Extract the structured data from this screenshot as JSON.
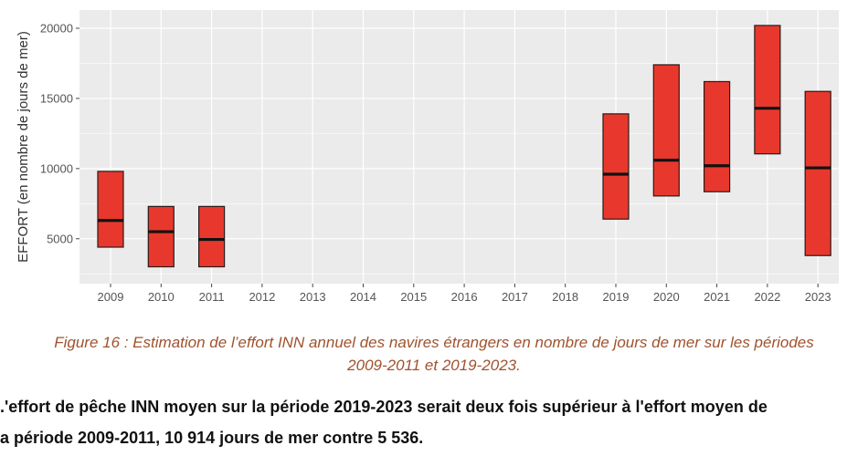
{
  "chart_data": {
    "type": "boxplot-range",
    "categories": [
      "2009",
      "2010",
      "2011",
      "2012",
      "2013",
      "2014",
      "2015",
      "2016",
      "2017",
      "2018",
      "2019",
      "2020",
      "2021",
      "2022",
      "2023"
    ],
    "series": [
      {
        "ranges": [
          {
            "x": "2009",
            "low": 4400,
            "high": 9800,
            "median": 6300
          },
          {
            "x": "2010",
            "low": 3000,
            "high": 7300,
            "median": 5500
          },
          {
            "x": "2011",
            "low": 3000,
            "high": 7300,
            "median": 4950
          },
          {
            "x": "2019",
            "low": 6400,
            "high": 13900,
            "median": 9600
          },
          {
            "x": "2020",
            "low": 8050,
            "high": 17400,
            "median": 10600
          },
          {
            "x": "2021",
            "low": 8350,
            "high": 16200,
            "median": 10200
          },
          {
            "x": "2022",
            "low": 11050,
            "high": 20200,
            "median": 14300
          },
          {
            "x": "2023",
            "low": 3800,
            "high": 15500,
            "median": 10050
          }
        ]
      }
    ],
    "yticks": [
      "5000",
      "10000",
      "15000",
      "20000"
    ],
    "ylim": [
      1800,
      21300
    ],
    "ylabel": "EFFORT (en nombre de jours de mer)",
    "xlabel": "",
    "grid": true,
    "colors": {
      "fill": "#e8382d",
      "stroke": "#2b1a18",
      "median": "#111111",
      "panel": "#ebebeb",
      "grid": "#ffffff"
    }
  },
  "caption": {
    "line1": "Figure 16 : Estimation de l’effort INN annuel des navires étrangers en nombre de jours de mer sur les périodes",
    "line2": "2009-2011 et 2019-2023."
  },
  "paragraph": {
    "line1": ".'effort de pêche INN moyen sur la période 2019-2023 serait deux fois supérieur à l'effort moyen de",
    "line2": "a période 2009-2011, 10 914 jours de mer contre 5 536."
  }
}
